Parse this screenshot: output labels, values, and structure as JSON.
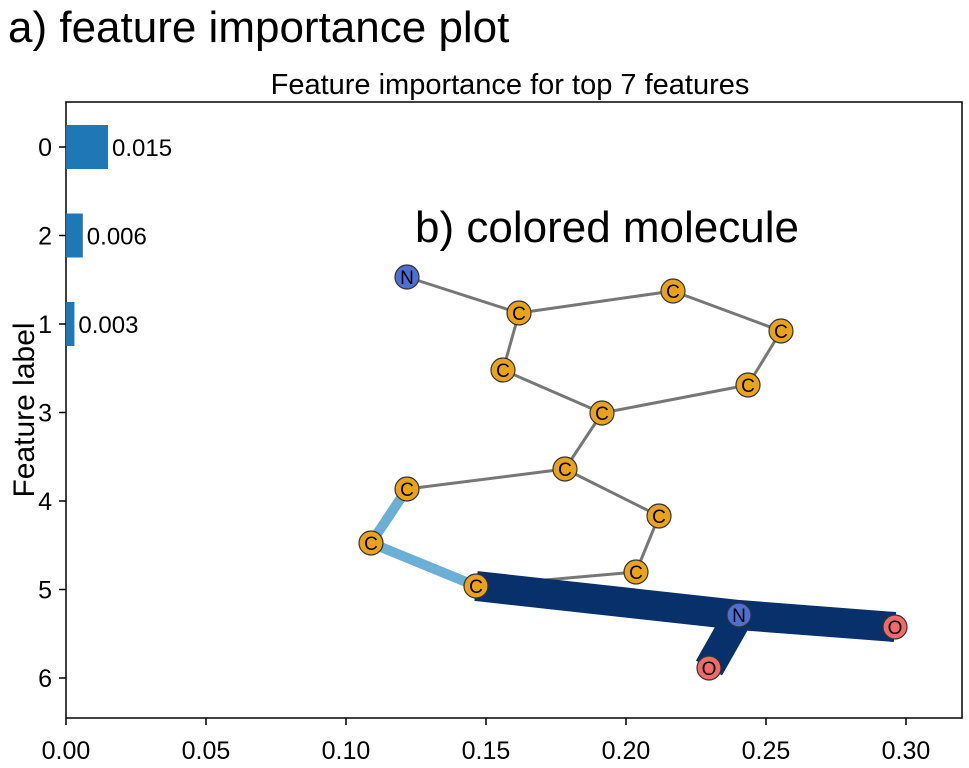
{
  "panel_a_label": "a) feature importance plot",
  "panel_b_label": "b) colored molecule",
  "chart_data": {
    "type": "bar",
    "orientation": "horizontal",
    "title": "Feature importance for top 7 features",
    "xlabel": "",
    "ylabel": "Feature label",
    "xlim": [
      0.0,
      0.32
    ],
    "xticks": [
      "0.00",
      "0.05",
      "0.10",
      "0.15",
      "0.20",
      "0.25",
      "0.30"
    ],
    "xtick_values": [
      0.0,
      0.05,
      0.1,
      0.15,
      0.2,
      0.25,
      0.3
    ],
    "categories": [
      "0",
      "2",
      "1",
      "3",
      "4",
      "5",
      "6"
    ],
    "values": [
      0.015,
      0.006,
      0.003,
      0,
      0,
      0,
      0
    ],
    "value_labels": [
      "0.015",
      "0.006",
      "0.003",
      "",
      "",
      "",
      ""
    ],
    "bar_color": "#1f77b4"
  },
  "molecule": {
    "atoms": [
      {
        "id": 0,
        "element": "N",
        "fill": "#4d6fd4"
      },
      {
        "id": 1,
        "element": "C",
        "fill": "#e8a21c"
      },
      {
        "id": 2,
        "element": "C",
        "fill": "#e8a21c"
      },
      {
        "id": 3,
        "element": "C",
        "fill": "#e8a21c"
      },
      {
        "id": 4,
        "element": "C",
        "fill": "#e8a21c"
      },
      {
        "id": 5,
        "element": "C",
        "fill": "#e8a21c"
      },
      {
        "id": 6,
        "element": "C",
        "fill": "#e8a21c"
      },
      {
        "id": 7,
        "element": "C",
        "fill": "#e8a21c"
      },
      {
        "id": 8,
        "element": "C",
        "fill": "#e8a21c"
      },
      {
        "id": 9,
        "element": "C",
        "fill": "#e8a21c"
      },
      {
        "id": 10,
        "element": "C",
        "fill": "#e8a21c"
      },
      {
        "id": 11,
        "element": "C",
        "fill": "#e8a21c"
      },
      {
        "id": 12,
        "element": "C",
        "fill": "#e8a21c"
      },
      {
        "id": 13,
        "element": "N",
        "fill": "#4d6fd4"
      },
      {
        "id": 14,
        "element": "O",
        "fill": "#f06a6a"
      },
      {
        "id": 15,
        "element": "O",
        "fill": "#f06a6a"
      }
    ],
    "bonds": [
      {
        "a": 0,
        "b": 1,
        "color": "#777777",
        "weight": "thin"
      },
      {
        "a": 1,
        "b": 2,
        "color": "#777777",
        "weight": "thin"
      },
      {
        "a": 2,
        "b": 3,
        "color": "#777777",
        "weight": "thin"
      },
      {
        "a": 3,
        "b": 4,
        "color": "#777777",
        "weight": "thin"
      },
      {
        "a": 4,
        "b": 5,
        "color": "#777777",
        "weight": "thin"
      },
      {
        "a": 5,
        "b": 6,
        "color": "#777777",
        "weight": "thin"
      },
      {
        "a": 6,
        "b": 1,
        "color": "#777777",
        "weight": "thin"
      },
      {
        "a": 5,
        "b": 7,
        "color": "#777777",
        "weight": "thin"
      },
      {
        "a": 7,
        "b": 8,
        "color": "#777777",
        "weight": "thin"
      },
      {
        "a": 8,
        "b": 9,
        "color": "#6baed6",
        "weight": "medium"
      },
      {
        "a": 9,
        "b": 10,
        "color": "#6baed6",
        "weight": "medium"
      },
      {
        "a": 10,
        "b": 11,
        "color": "#777777",
        "weight": "thin"
      },
      {
        "a": 11,
        "b": 12,
        "color": "#777777",
        "weight": "thin"
      },
      {
        "a": 12,
        "b": 7,
        "color": "#777777",
        "weight": "thin"
      },
      {
        "a": 10,
        "b": 13,
        "color": "#08306b",
        "weight": "heavy"
      },
      {
        "a": 13,
        "b": 14,
        "color": "#08306b",
        "weight": "heavy"
      },
      {
        "a": 13,
        "b": 15,
        "color": "#08306b",
        "weight": "heavy"
      }
    ]
  }
}
